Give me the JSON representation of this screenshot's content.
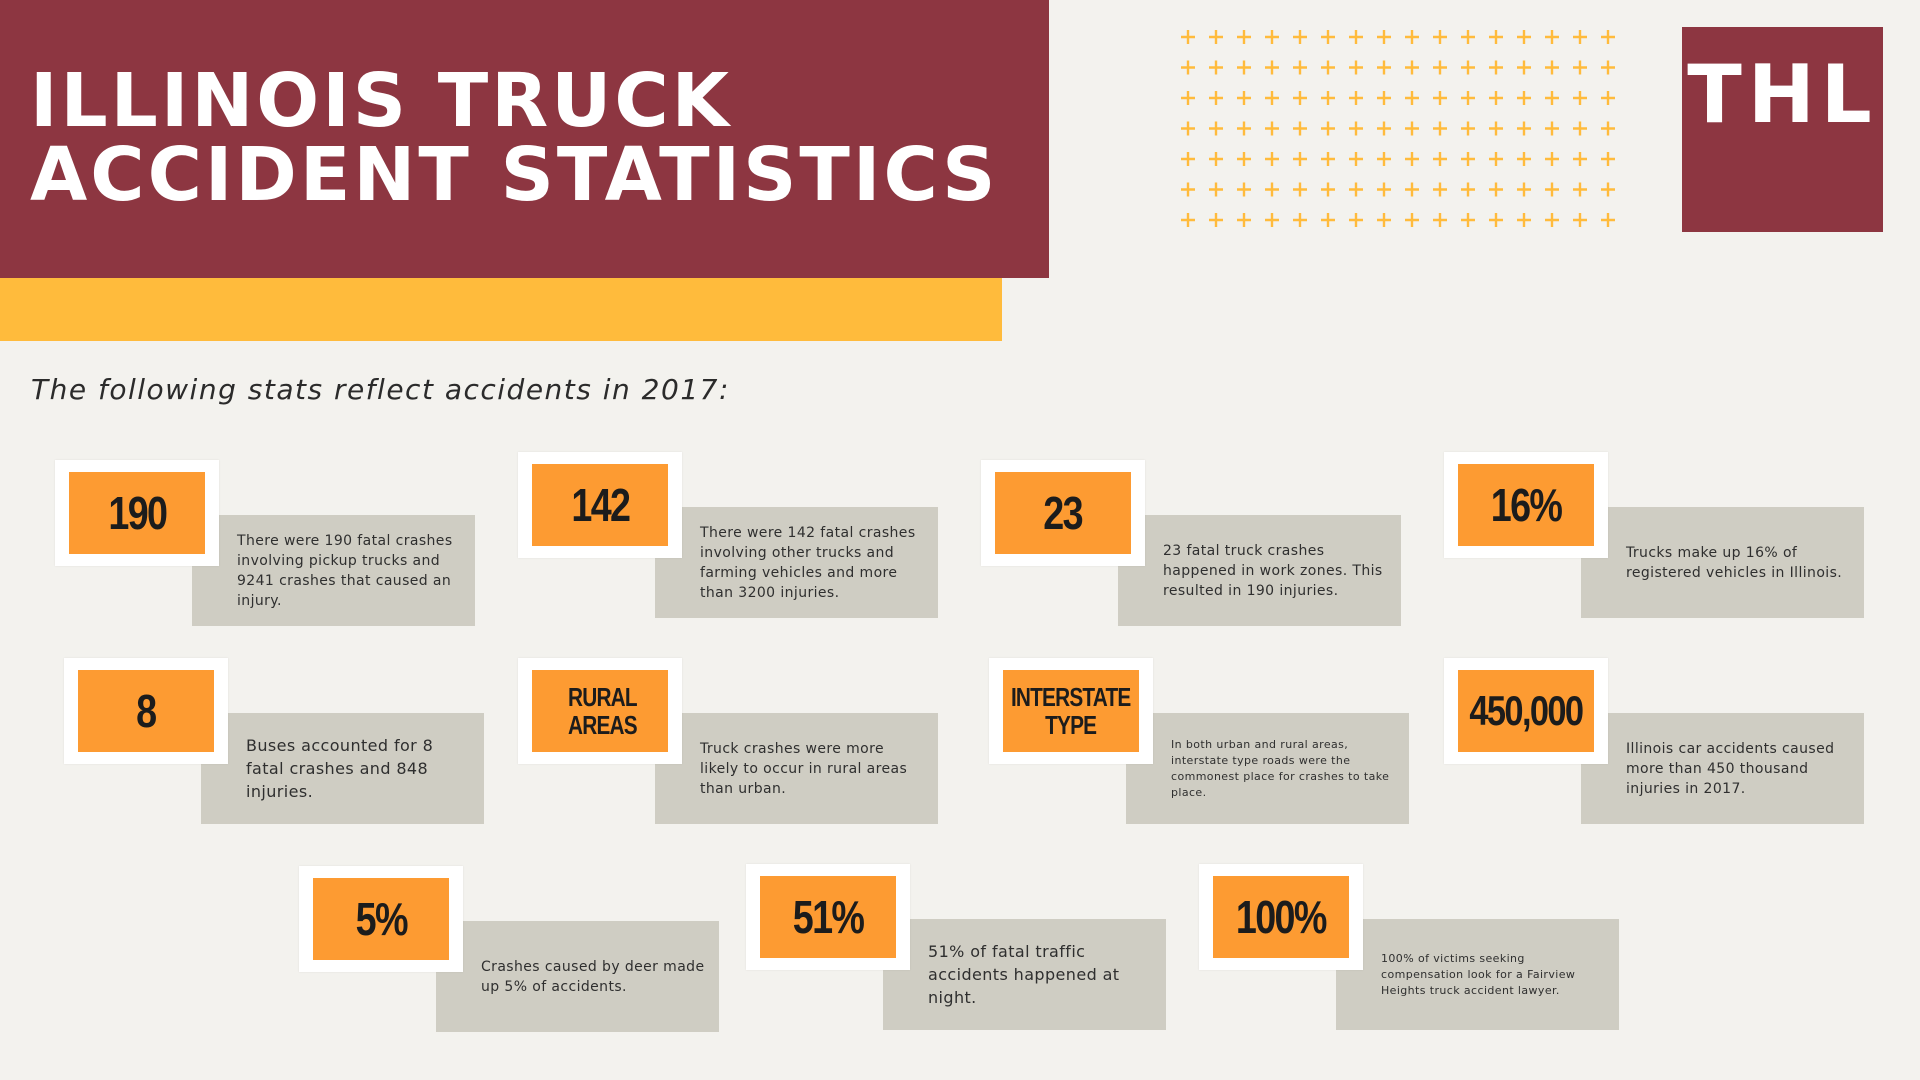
{
  "header": {
    "title_line1": "ILLINOIS TRUCK",
    "title_line2": "ACCIDENT STATISTICS"
  },
  "logo": {
    "text": "THL"
  },
  "subtitle": "The following stats reflect accidents in 2017:",
  "colors": {
    "maroon": "#8d3641",
    "yellow": "#ffbb3c",
    "orange": "#fd9b32",
    "desc_gray": "#cfcdc3",
    "background": "#f3f2ee",
    "plus": "#ffbb3c"
  },
  "stats": [
    {
      "value": "190",
      "description": "There were 190 fatal crashes involving pickup trucks and 9241 crashes that caused an injury."
    },
    {
      "value": "142",
      "description": "There were 142 fatal crashes involving other trucks and farming vehicles and more than 3200 injuries."
    },
    {
      "value": "23",
      "description": "23 fatal truck crashes happened in work zones. This resulted in 190 injuries."
    },
    {
      "value": "16%",
      "description": "Trucks make up 16% of registered vehicles in Illinois."
    },
    {
      "value": "8",
      "description": "Buses accounted for 8 fatal crashes and 848 injuries."
    },
    {
      "value": "RURAL AREAS",
      "description": "Truck crashes were more likely to occur in rural areas than urban."
    },
    {
      "value": "INTERSTATE TYPE",
      "description": "In both urban and rural areas, interstate type roads were the commonest place for crashes to take place."
    },
    {
      "value": "450,000",
      "description": "Illinois car accidents caused more than 450 thousand injuries in 2017."
    },
    {
      "value": "5%",
      "description": "Crashes caused by deer made up 5% of accidents."
    },
    {
      "value": "51%",
      "description": "51% of fatal traffic accidents happened at night."
    },
    {
      "value": "100%",
      "description": "100% of victims seeking compensation look for a Fairview Heights truck accident lawyer."
    }
  ]
}
